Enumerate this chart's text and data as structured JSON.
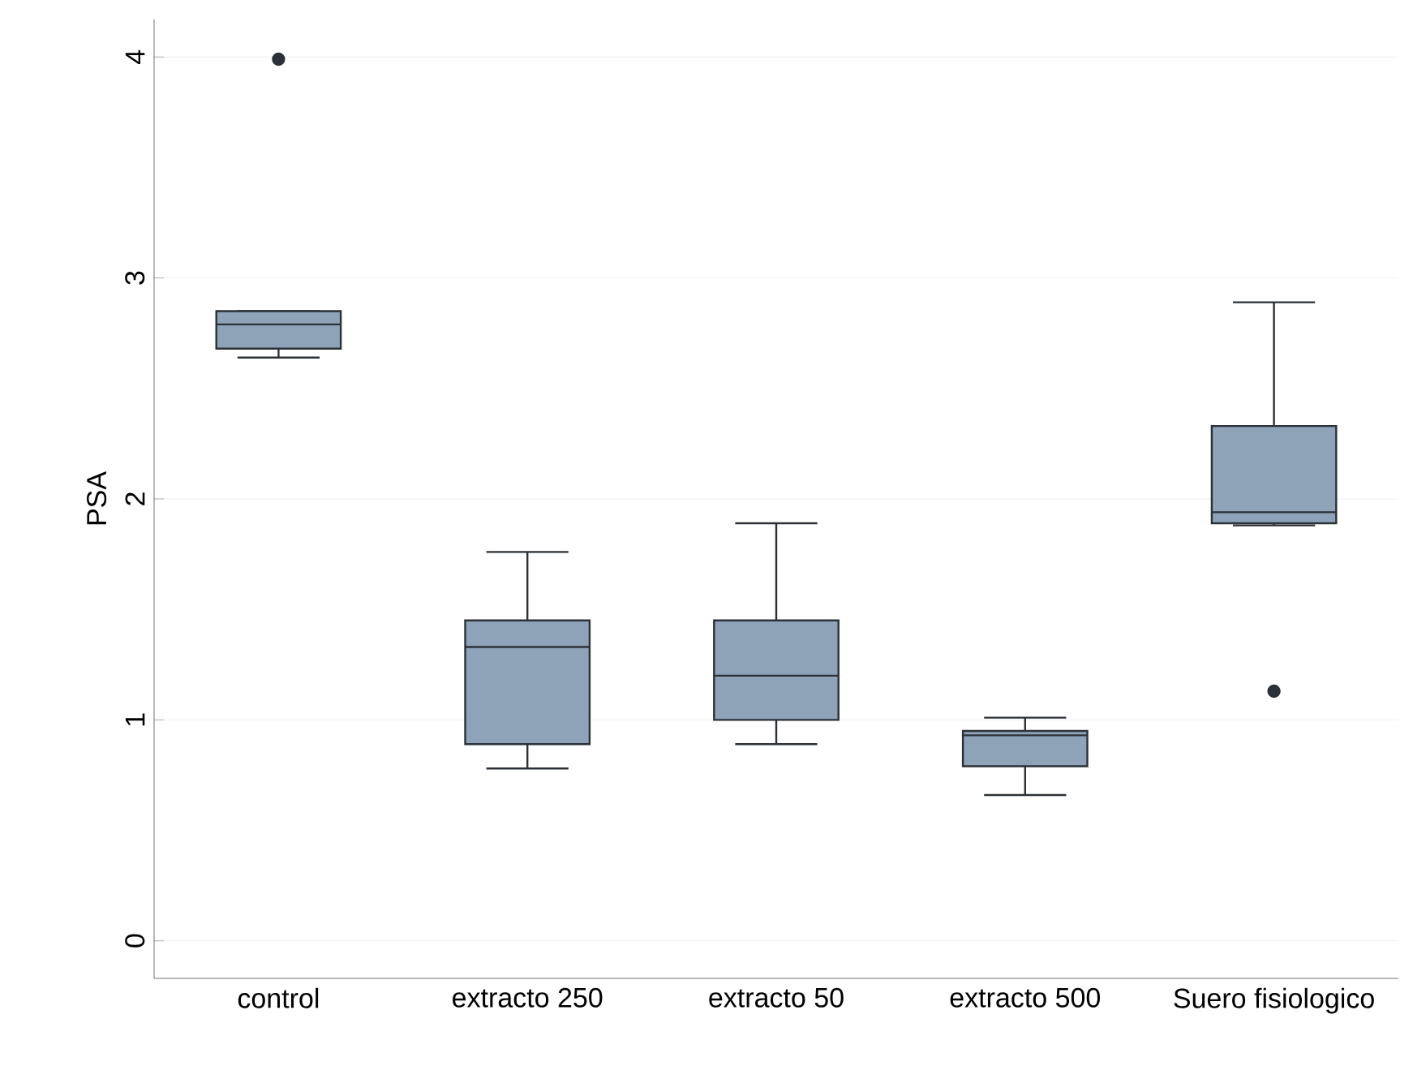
{
  "chart_data": {
    "type": "box",
    "ylabel": "PSA",
    "categories": [
      "control",
      "extracto 250",
      "extracto 50",
      "extracto 500",
      "Suero fisiologico"
    ],
    "series": [
      {
        "color": "#8ea3b8",
        "boxes": [
          {
            "low": 2.64,
            "q1": 2.68,
            "median": 2.79,
            "q3": 2.85,
            "high": 2.85,
            "outliers": [
              3.99
            ]
          },
          {
            "low": 0.78,
            "q1": 0.89,
            "median": 1.33,
            "q3": 1.45,
            "high": 1.76
          },
          {
            "low": 0.89,
            "q1": 1.0,
            "median": 1.2,
            "q3": 1.45,
            "high": 1.89
          },
          {
            "low": 0.66,
            "q1": 0.79,
            "median": 0.93,
            "q3": 0.95,
            "high": 1.01
          },
          {
            "low": 1.88,
            "q1": 1.89,
            "median": 1.94,
            "q3": 2.33,
            "high": 2.89,
            "outliers": [
              1.13
            ]
          }
        ]
      }
    ],
    "ylim": [
      -0.17,
      4.17
    ],
    "yticks": [
      0,
      1,
      2,
      3,
      4
    ],
    "grid": "y"
  }
}
